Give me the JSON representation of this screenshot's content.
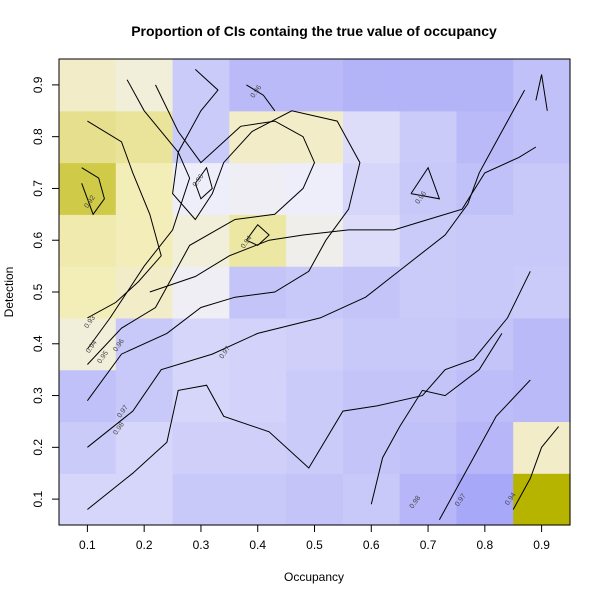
{
  "chart_data": {
    "type": "heatmap",
    "title": "Proportion of CIs containg the true value of occupancy",
    "xlabel": "Occupancy",
    "ylabel": "Detection",
    "x": [
      0.1,
      0.2,
      0.3,
      0.4,
      0.5,
      0.6,
      0.7,
      0.8,
      0.9
    ],
    "y": [
      0.1,
      0.2,
      0.3,
      0.4,
      0.5,
      0.6,
      0.7,
      0.8,
      0.9
    ],
    "xlim": [
      0.05,
      0.95
    ],
    "ylim": [
      0.05,
      0.95
    ],
    "x_ticks": [
      "0.1",
      "0.2",
      "0.3",
      "0.4",
      "0.5",
      "0.6",
      "0.7",
      "0.8",
      "0.9"
    ],
    "y_ticks": [
      "0.1",
      "0.2",
      "0.3",
      "0.4",
      "0.5",
      "0.6",
      "0.7",
      "0.8",
      "0.9"
    ],
    "z_rows_by_detection": [
      [
        0.972,
        0.972,
        0.976,
        0.976,
        0.977,
        0.976,
        0.981,
        0.985,
        0.9
      ],
      [
        0.975,
        0.972,
        0.974,
        0.974,
        0.975,
        0.977,
        0.978,
        0.981,
        0.95
      ],
      [
        0.978,
        0.976,
        0.972,
        0.973,
        0.975,
        0.977,
        0.977,
        0.979,
        0.98
      ],
      [
        0.955,
        0.976,
        0.972,
        0.973,
        0.974,
        0.976,
        0.976,
        0.977,
        0.98
      ],
      [
        0.945,
        0.95,
        0.963,
        0.977,
        0.976,
        0.977,
        0.975,
        0.976,
        0.975
      ],
      [
        0.943,
        0.946,
        0.955,
        0.94,
        0.96,
        0.97,
        0.975,
        0.976,
        0.976
      ],
      [
        0.918,
        0.945,
        0.965,
        0.963,
        0.965,
        0.972,
        0.976,
        0.978,
        0.976
      ],
      [
        0.935,
        0.938,
        0.975,
        0.95,
        0.95,
        0.97,
        0.975,
        0.98,
        0.978
      ],
      [
        0.95,
        0.955,
        0.975,
        0.98,
        0.98,
        0.982,
        0.982,
        0.982,
        0.978
      ]
    ],
    "contours": [
      {
        "label": "0.92",
        "points": [
          [
            0.09,
            0.74
          ],
          [
            0.12,
            0.72
          ],
          [
            0.13,
            0.68
          ],
          [
            0.11,
            0.65
          ],
          [
            0.09,
            0.71
          ]
        ],
        "label_at": [
          0.107,
          0.672
        ]
      },
      {
        "label": "0.93",
        "points": [
          [
            0.1,
            0.45
          ],
          [
            0.15,
            0.48
          ],
          [
            0.19,
            0.52
          ],
          [
            0.23,
            0.57
          ],
          [
            0.21,
            0.65
          ],
          [
            0.18,
            0.73
          ],
          [
            0.16,
            0.79
          ],
          [
            0.1,
            0.83
          ]
        ],
        "label_at": [
          0.107,
          0.44
        ]
      },
      {
        "label": "0.94",
        "points": [
          [
            0.1,
            0.39
          ],
          [
            0.14,
            0.45
          ],
          [
            0.2,
            0.55
          ],
          [
            0.25,
            0.62
          ],
          [
            0.28,
            0.72
          ],
          [
            0.26,
            0.77
          ],
          [
            0.2,
            0.85
          ],
          [
            0.17,
            0.91
          ]
        ],
        "label_at": [
          0.11,
          0.392
        ]
      },
      {
        "label": "0.94",
        "points": [
          [
            0.38,
            0.6
          ],
          [
            0.4,
            0.63
          ],
          [
            0.42,
            0.61
          ],
          [
            0.4,
            0.59
          ],
          [
            0.38,
            0.6
          ]
        ],
        "label_at": [
          0.383,
          0.594
        ]
      },
      {
        "label": "0.95",
        "points": [
          [
            0.1,
            0.36
          ],
          [
            0.16,
            0.43
          ],
          [
            0.22,
            0.47
          ],
          [
            0.25,
            0.53
          ],
          [
            0.28,
            0.59
          ],
          [
            0.36,
            0.64
          ],
          [
            0.43,
            0.65
          ],
          [
            0.48,
            0.7
          ],
          [
            0.5,
            0.75
          ],
          [
            0.48,
            0.8
          ],
          [
            0.43,
            0.83
          ],
          [
            0.37,
            0.82
          ],
          [
            0.3,
            0.75
          ],
          [
            0.26,
            0.81
          ],
          [
            0.22,
            0.9
          ]
        ],
        "label_at": [
          0.13,
          0.372
        ]
      },
      {
        "label": "0.96",
        "points": [
          [
            0.1,
            0.29
          ],
          [
            0.16,
            0.38
          ],
          [
            0.24,
            0.42
          ],
          [
            0.3,
            0.47
          ],
          [
            0.36,
            0.49
          ],
          [
            0.43,
            0.5
          ],
          [
            0.49,
            0.54
          ],
          [
            0.52,
            0.6
          ],
          [
            0.56,
            0.66
          ],
          [
            0.58,
            0.75
          ],
          [
            0.54,
            0.83
          ],
          [
            0.46,
            0.85
          ],
          [
            0.39,
            0.81
          ],
          [
            0.34,
            0.75
          ],
          [
            0.32,
            0.69
          ],
          [
            0.29,
            0.64
          ],
          [
            0.25,
            0.69
          ],
          [
            0.26,
            0.77
          ],
          [
            0.3,
            0.85
          ],
          [
            0.33,
            0.89
          ],
          [
            0.29,
            0.93
          ]
        ],
        "label_at": [
          0.158,
          0.395
        ]
      },
      {
        "label": "0.96",
        "points": [
          [
            0.29,
            0.71
          ],
          [
            0.31,
            0.74
          ],
          [
            0.32,
            0.7
          ],
          [
            0.3,
            0.68
          ],
          [
            0.29,
            0.71
          ]
        ],
        "label_at": [
          0.298,
          0.713
        ]
      },
      {
        "label": "0.96",
        "points": [
          [
            0.67,
            0.69
          ],
          [
            0.72,
            0.68
          ],
          [
            0.7,
            0.74
          ],
          [
            0.67,
            0.69
          ]
        ],
        "label_at": [
          0.69,
          0.68
        ]
      },
      {
        "label": "0.96",
        "points": [
          [
            0.38,
            0.9
          ],
          [
            0.41,
            0.88
          ],
          [
            0.43,
            0.85
          ]
        ],
        "label_at": [
          0.4,
          0.885
        ]
      },
      {
        "label": "0.97",
        "points": [
          [
            0.1,
            0.2
          ],
          [
            0.18,
            0.27
          ],
          [
            0.23,
            0.35
          ],
          [
            0.32,
            0.38
          ],
          [
            0.4,
            0.42
          ],
          [
            0.51,
            0.45
          ],
          [
            0.59,
            0.49
          ],
          [
            0.66,
            0.55
          ],
          [
            0.73,
            0.61
          ],
          [
            0.77,
            0.67
          ],
          [
            0.79,
            0.73
          ],
          [
            0.82,
            0.79
          ],
          [
            0.85,
            0.85
          ],
          [
            0.87,
            0.89
          ]
        ],
        "label_at": [
          0.165,
          0.267
        ]
      },
      {
        "label": "0.97",
        "points": [
          [
            0.21,
            0.5
          ],
          [
            0.29,
            0.53
          ],
          [
            0.35,
            0.57
          ],
          [
            0.42,
            0.6
          ],
          [
            0.48,
            0.61
          ],
          [
            0.56,
            0.62
          ],
          [
            0.64,
            0.62
          ],
          [
            0.7,
            0.64
          ],
          [
            0.76,
            0.66
          ],
          [
            0.8,
            0.73
          ],
          [
            0.86,
            0.76
          ],
          [
            0.89,
            0.78
          ]
        ],
        "label_at": [
          0.345,
          0.381
        ]
      },
      {
        "label": "0.98",
        "points": [
          [
            0.1,
            0.08
          ],
          [
            0.18,
            0.15
          ],
          [
            0.24,
            0.21
          ],
          [
            0.26,
            0.31
          ],
          [
            0.31,
            0.32
          ],
          [
            0.34,
            0.26
          ],
          [
            0.42,
            0.23
          ],
          [
            0.49,
            0.16
          ],
          [
            0.55,
            0.27
          ],
          [
            0.61,
            0.28
          ],
          [
            0.69,
            0.3
          ],
          [
            0.73,
            0.35
          ],
          [
            0.78,
            0.37
          ],
          [
            0.84,
            0.45
          ],
          [
            0.88,
            0.54
          ]
        ],
        "label_at": [
          0.158,
          0.234
        ]
      },
      {
        "label": "0.98",
        "points": [
          [
            0.6,
            0.09
          ],
          [
            0.62,
            0.18
          ],
          [
            0.65,
            0.24
          ],
          [
            0.69,
            0.31
          ],
          [
            0.73,
            0.3
          ],
          [
            0.79,
            0.35
          ],
          [
            0.83,
            0.42
          ]
        ],
        "label_at": [
          0.68,
          0.092
        ]
      },
      {
        "label": "0.97",
        "points": [
          [
            0.72,
            0.06
          ],
          [
            0.75,
            0.12
          ],
          [
            0.78,
            0.18
          ],
          [
            0.82,
            0.26
          ],
          [
            0.88,
            0.33
          ]
        ],
        "label_at": [
          0.76,
          0.096
        ]
      },
      {
        "label": "0.94",
        "points": [
          [
            0.85,
            0.08
          ],
          [
            0.88,
            0.14
          ],
          [
            0.9,
            0.2
          ],
          [
            0.93,
            0.24
          ]
        ],
        "label_at": [
          0.848,
          0.098
        ]
      },
      {
        "label": "",
        "points": [
          [
            0.89,
            0.87
          ],
          [
            0.9,
            0.92
          ],
          [
            0.91,
            0.85
          ]
        ],
        "label_at": null
      }
    ],
    "color_scale": {
      "low": "#b7b400",
      "mid_low": "#f3edb7",
      "mid": "#eeeefb",
      "high": "#a8a8f8"
    },
    "grid": false,
    "legend": "none"
  }
}
